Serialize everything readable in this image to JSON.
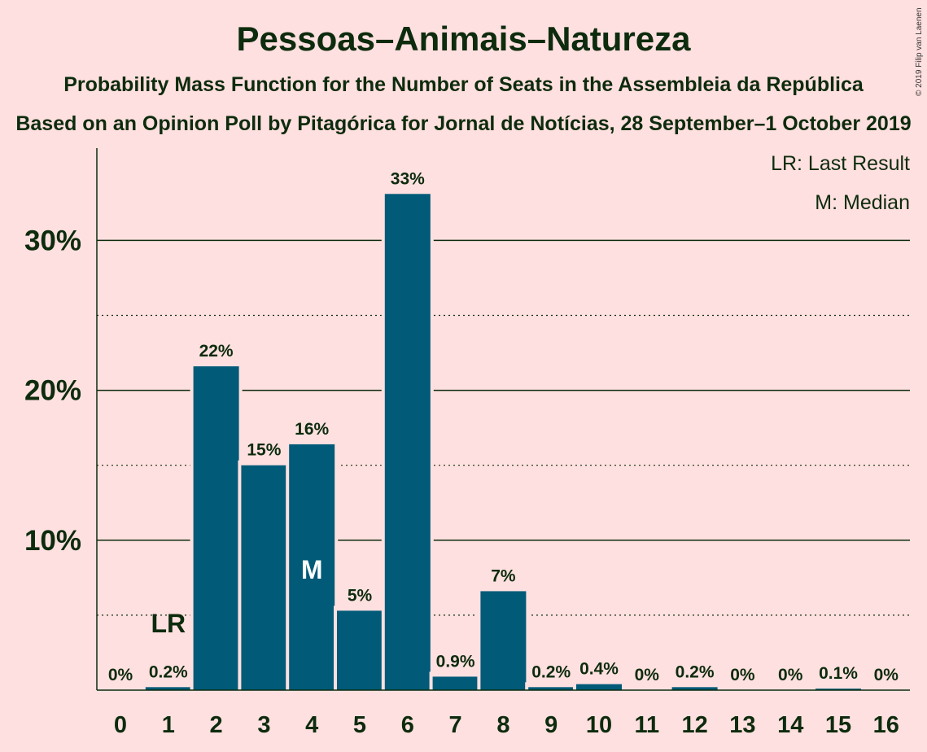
{
  "header": {
    "title": "Pessoas–Animais–Natureza",
    "subtitle": "Probability Mass Function for the Number of Seats in the Assembleia da República",
    "subtitle2": "Based on an Opinion Poll by Pitagórica for Jornal de Notícias, 28 September–1 October 2019",
    "copyright": "© 2019 Filip van Laenen"
  },
  "legend": {
    "last_result": "LR: Last Result",
    "median": "M: Median"
  },
  "colors": {
    "bar": "#005a78",
    "background": "#ffe0e0",
    "text": "#0d2b0d"
  },
  "chart_data": {
    "type": "bar",
    "categories": [
      "0",
      "1",
      "2",
      "3",
      "4",
      "5",
      "6",
      "7",
      "8",
      "9",
      "10",
      "11",
      "12",
      "13",
      "14",
      "15",
      "16"
    ],
    "values": [
      0,
      0.2,
      21.6,
      15.0,
      16.4,
      5.3,
      33.1,
      0.9,
      6.6,
      0.2,
      0.4,
      0,
      0.2,
      0,
      0,
      0.1,
      0
    ],
    "value_labels": [
      "0%",
      "0.2%",
      "22%",
      "15%",
      "16%",
      "5%",
      "33%",
      "0.9%",
      "7%",
      "0.2%",
      "0.4%",
      "0%",
      "0.2%",
      "0%",
      "0%",
      "0.1%",
      "0%"
    ],
    "ylim": [
      0,
      36
    ],
    "y_ticks": [
      10,
      20,
      30
    ],
    "y_tick_labels": [
      "10%",
      "20%",
      "30%"
    ],
    "y_minor_ticks": [
      5,
      15,
      25
    ],
    "last_result_index": 1,
    "last_result_label": "LR",
    "median_index": 4,
    "median_label": "M",
    "legend_position": "top-right",
    "grid": true
  }
}
